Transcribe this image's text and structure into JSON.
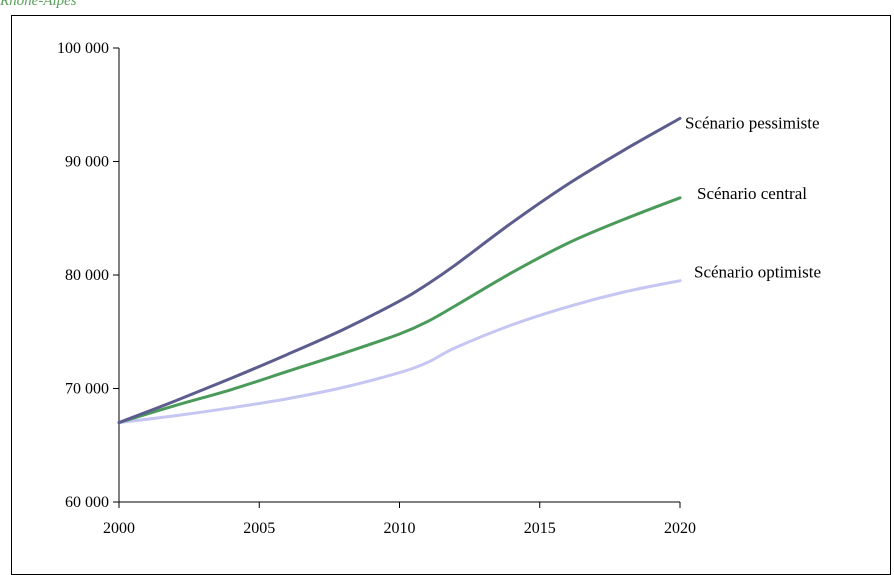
{
  "caption": "Rhône-Alpes",
  "chart_data": {
    "type": "line",
    "xlim": [
      2000,
      2020
    ],
    "ylim": [
      60000,
      100000
    ],
    "x_ticks": [
      2000,
      2005,
      2010,
      2015,
      2020
    ],
    "y_ticks": [
      60000,
      70000,
      80000,
      90000,
      100000
    ],
    "x_tick_labels": [
      "2000",
      "2005",
      "2010",
      "2015",
      "2020"
    ],
    "y_tick_labels": [
      "60 000",
      "70 000",
      "80 000",
      "90 000",
      "100 000"
    ],
    "grid": false,
    "legend": "inline-right",
    "x": [
      2000,
      2002,
      2004,
      2006,
      2008,
      2010,
      2011,
      2012,
      2014,
      2016,
      2018,
      2020
    ],
    "series": [
      {
        "name": "Scénario pessimiste",
        "color": "#5c5c8f",
        "values": [
          67000,
          68900,
          70900,
          73000,
          75200,
          77700,
          79200,
          80900,
          84600,
          88000,
          91000,
          93800
        ]
      },
      {
        "name": "Scénario central",
        "color": "#4a9a5a",
        "values": [
          67000,
          68500,
          69900,
          71500,
          73100,
          74800,
          75900,
          77300,
          80200,
          82800,
          84900,
          86800
        ]
      },
      {
        "name": "Scénario optimiste",
        "color": "#c6c6f2",
        "values": [
          67000,
          67600,
          68300,
          69100,
          70100,
          71400,
          72300,
          73600,
          75600,
          77200,
          78500,
          79500
        ]
      }
    ]
  }
}
